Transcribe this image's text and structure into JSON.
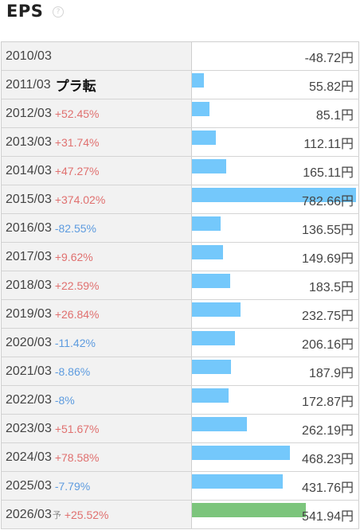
{
  "header": {
    "title": "EPS",
    "help_glyph": "?"
  },
  "colors": {
    "bar": "#74c8fb",
    "bar_forecast": "#7cc57c",
    "positive": "#e0706f",
    "negative": "#5d9bdf"
  },
  "unit": "円",
  "forecast_mark": "予",
  "rows": [
    {
      "year": "2010/03",
      "change": "",
      "change_type": "none",
      "value": "-48.72円",
      "amount": -48.72,
      "forecast": false
    },
    {
      "year": "2011/03",
      "change": "プラ転",
      "change_type": "turn",
      "value": "55.82円",
      "amount": 55.82,
      "forecast": false
    },
    {
      "year": "2012/03",
      "change": "+52.45%",
      "change_type": "pos",
      "value": "85.1円",
      "amount": 85.1,
      "forecast": false
    },
    {
      "year": "2013/03",
      "change": "+31.74%",
      "change_type": "pos",
      "value": "112.11円",
      "amount": 112.11,
      "forecast": false
    },
    {
      "year": "2014/03",
      "change": "+47.27%",
      "change_type": "pos",
      "value": "165.11円",
      "amount": 165.11,
      "forecast": false
    },
    {
      "year": "2015/03",
      "change": "+374.02%",
      "change_type": "pos",
      "value": "782.66円",
      "amount": 782.66,
      "forecast": false
    },
    {
      "year": "2016/03",
      "change": "-82.55%",
      "change_type": "neg",
      "value": "136.55円",
      "amount": 136.55,
      "forecast": false
    },
    {
      "year": "2017/03",
      "change": "+9.62%",
      "change_type": "pos",
      "value": "149.69円",
      "amount": 149.69,
      "forecast": false
    },
    {
      "year": "2018/03",
      "change": "+22.59%",
      "change_type": "pos",
      "value": "183.5円",
      "amount": 183.5,
      "forecast": false
    },
    {
      "year": "2019/03",
      "change": "+26.84%",
      "change_type": "pos",
      "value": "232.75円",
      "amount": 232.75,
      "forecast": false
    },
    {
      "year": "2020/03",
      "change": "-11.42%",
      "change_type": "neg",
      "value": "206.16円",
      "amount": 206.16,
      "forecast": false
    },
    {
      "year": "2021/03",
      "change": "-8.86%",
      "change_type": "neg",
      "value": "187.9円",
      "amount": 187.9,
      "forecast": false
    },
    {
      "year": "2022/03",
      "change": "-8%",
      "change_type": "neg",
      "value": "172.87円",
      "amount": 172.87,
      "forecast": false
    },
    {
      "year": "2023/03",
      "change": "+51.67%",
      "change_type": "pos",
      "value": "262.19円",
      "amount": 262.19,
      "forecast": false
    },
    {
      "year": "2024/03",
      "change": "+78.58%",
      "change_type": "pos",
      "value": "468.23円",
      "amount": 468.23,
      "forecast": false
    },
    {
      "year": "2025/03",
      "change": "-7.79%",
      "change_type": "neg",
      "value": "431.76円",
      "amount": 431.76,
      "forecast": false
    },
    {
      "year": "2026/03",
      "change": "+25.52%",
      "change_type": "pos",
      "value": "541.94円",
      "amount": 541.94,
      "forecast": true
    }
  ]
}
